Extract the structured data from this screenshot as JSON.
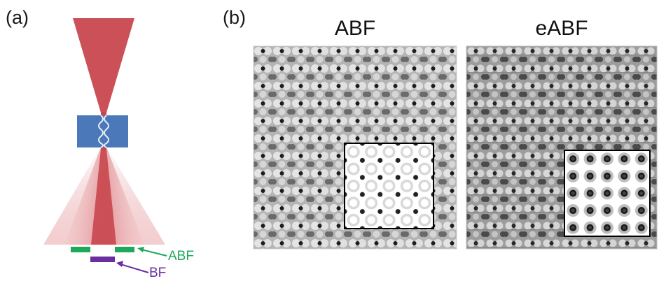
{
  "panel_a": {
    "label": "(a)",
    "detectors": {
      "abf_label": "ABF",
      "bf_label": "BF"
    },
    "colors": {
      "beam": "#c8474e",
      "lens": "#4a78b8",
      "abf_detector": "#1fa85a",
      "bf_detector": "#6a2ea0"
    }
  },
  "panel_b": {
    "label": "(b)",
    "images": [
      {
        "title": "ABF"
      },
      {
        "title": "eABF"
      }
    ]
  }
}
